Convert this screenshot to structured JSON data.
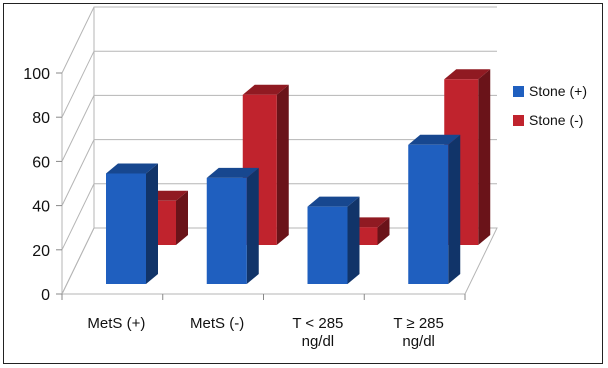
{
  "chart_data": {
    "type": "bar",
    "title": "",
    "xlabel": "",
    "ylabel": "",
    "ylim": [
      0,
      100
    ],
    "yticks": [
      0,
      20,
      40,
      60,
      80,
      100
    ],
    "categories": [
      [
        "MetS (+)"
      ],
      [
        "MetS (-)"
      ],
      [
        "T < 285",
        "ng/dl"
      ],
      [
        "T ≥ 285",
        "ng/dl"
      ]
    ],
    "series": [
      {
        "name": "Stone (+)",
        "color": "#1f5fbf",
        "values": [
          50,
          48,
          35,
          63
        ]
      },
      {
        "name": "Stone (-)",
        "color": "#c0232d",
        "values": [
          20,
          68,
          8,
          75
        ]
      }
    ],
    "legend_position": "right",
    "grid": true,
    "style": "3d-clustered-column"
  }
}
